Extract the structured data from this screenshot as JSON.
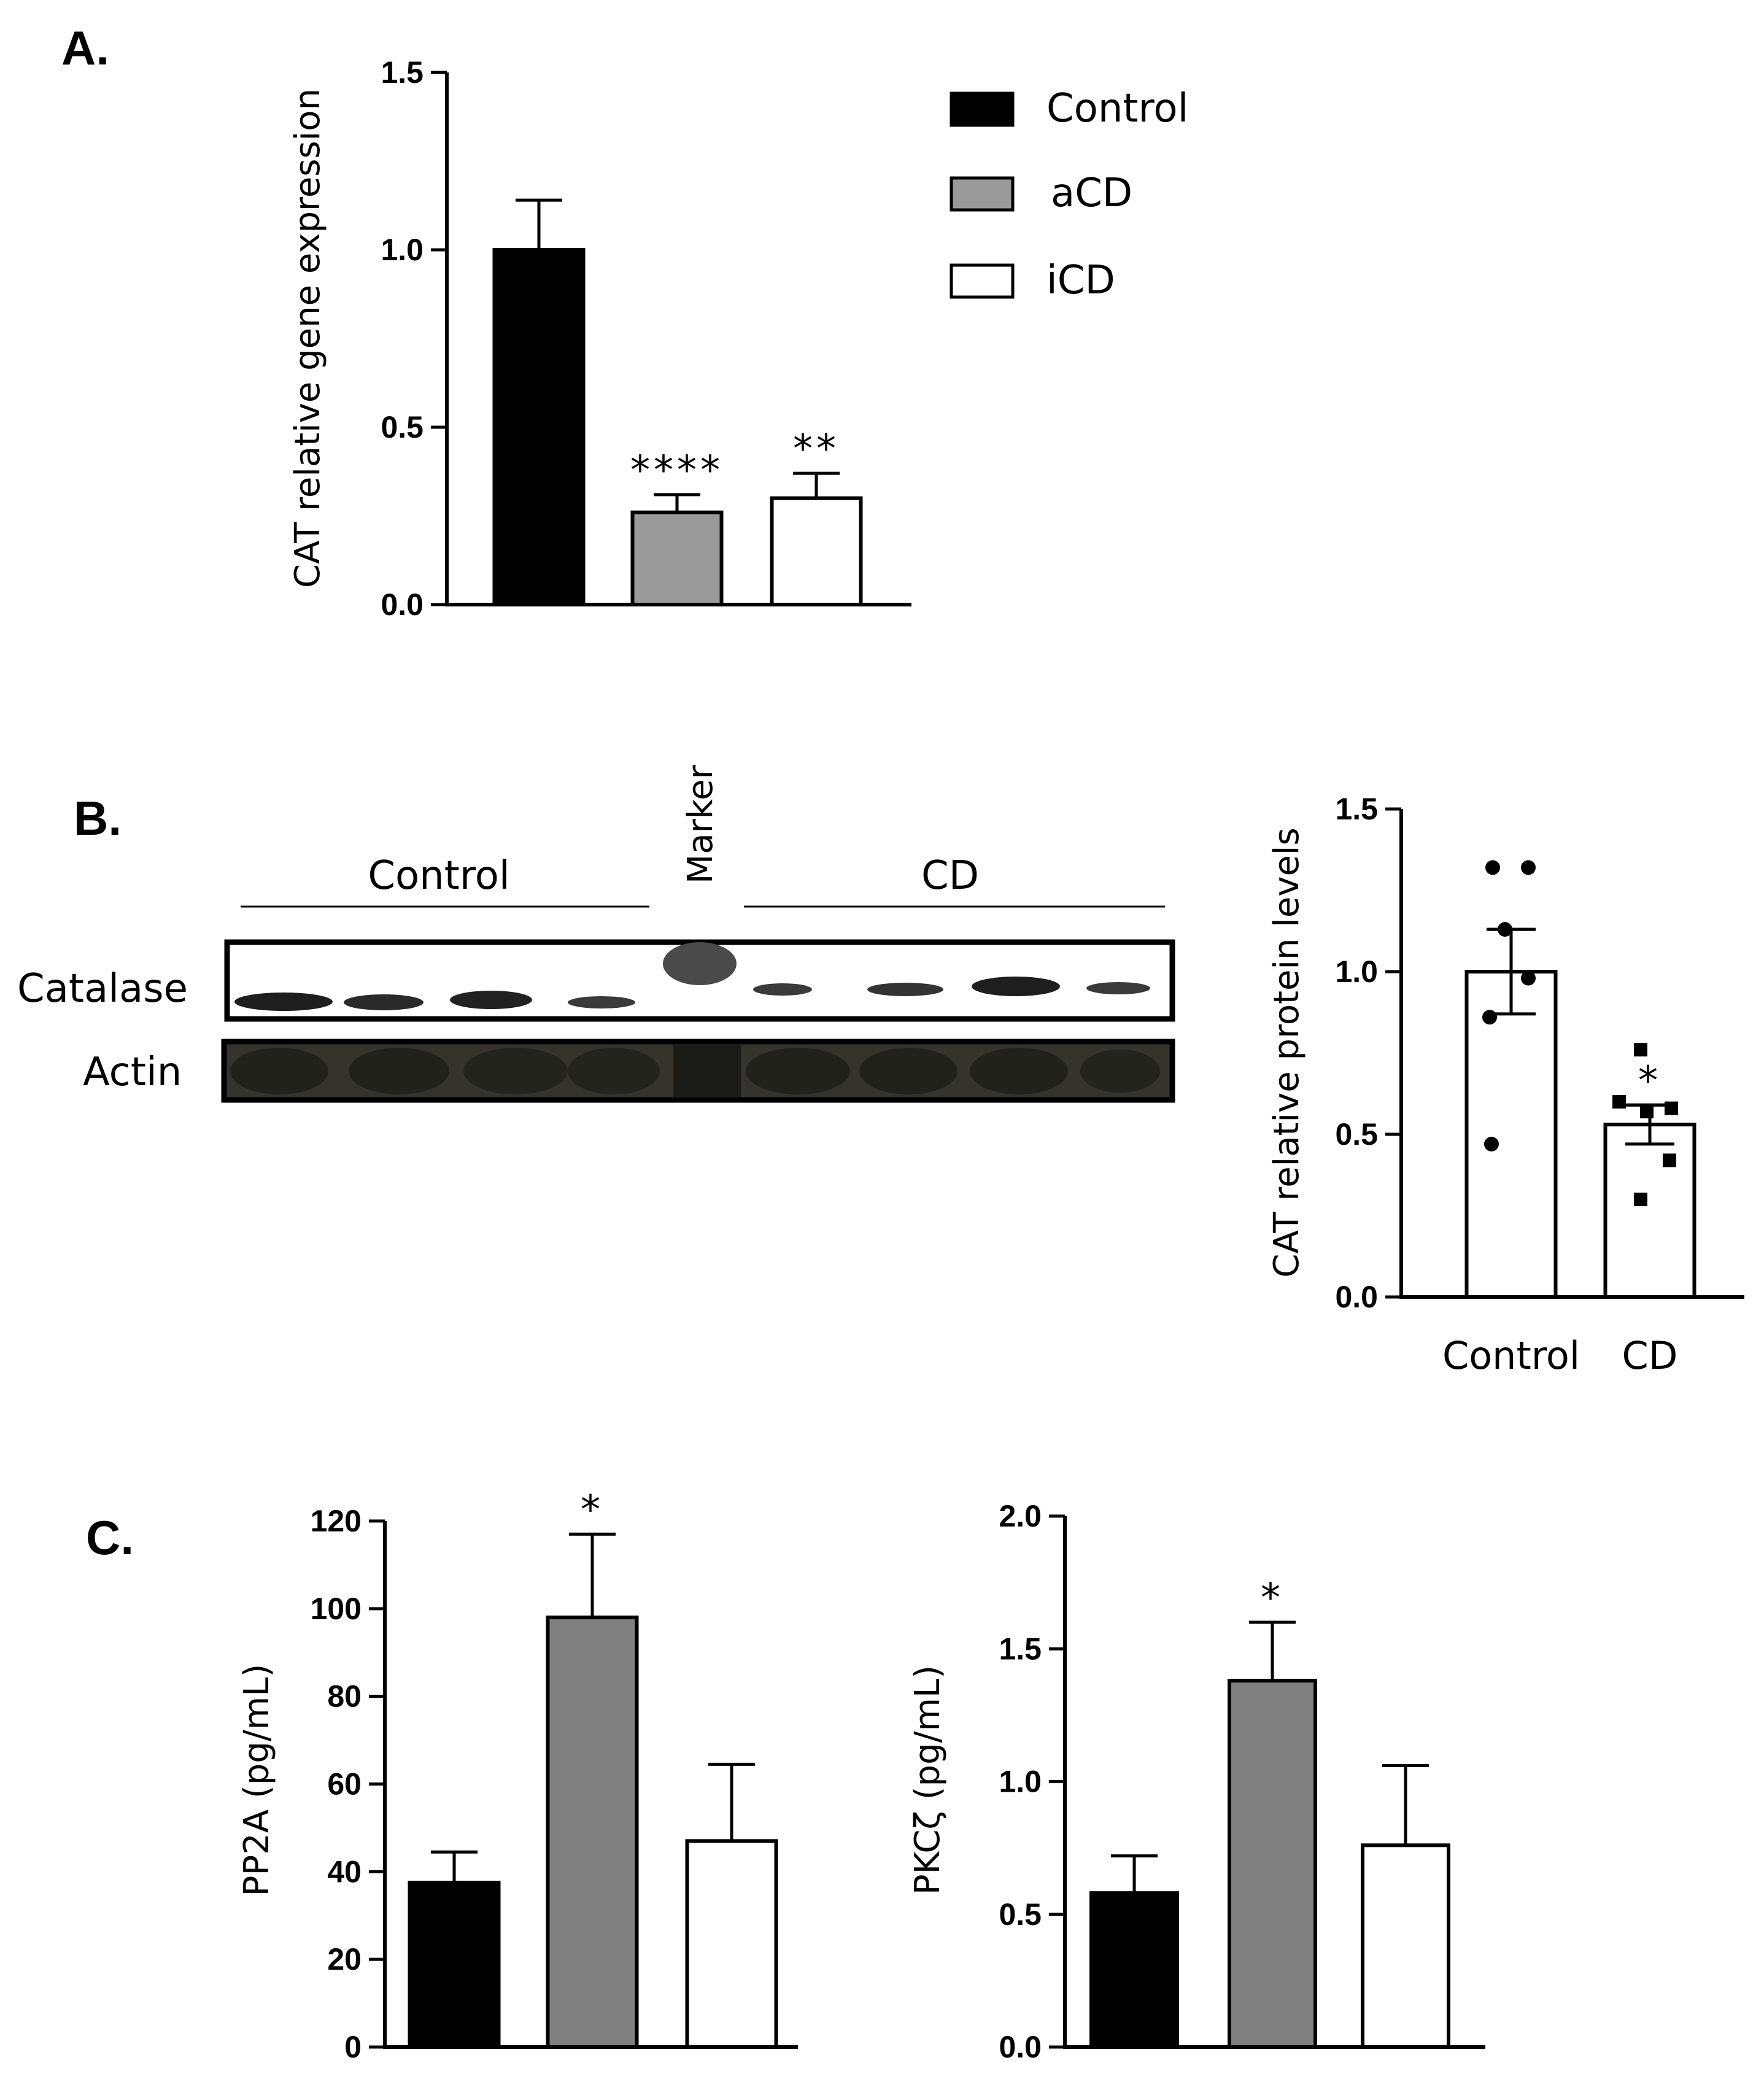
{
  "panels": {
    "a": "A.",
    "b": "B.",
    "c": "C."
  },
  "colors": {
    "control": "#000000",
    "aCD": "#9a9a9a",
    "iCD": "#ffffff",
    "c_mid": "#808080",
    "outline": "#000000"
  },
  "legend": [
    {
      "label": "Control",
      "color": "#000000"
    },
    {
      "label": "aCD",
      "color": "#9a9a9a"
    },
    {
      "label": "iCD",
      "color": "#ffffff"
    }
  ],
  "blot": {
    "control_label": "Control",
    "marker_label": "Marker",
    "cd_label": "CD",
    "row1_label": "Catalase",
    "row2_label": "Actin"
  },
  "chart_data": [
    {
      "id": "A",
      "type": "bar",
      "ylabel": "CAT relative  gene expression",
      "categories": [
        "Control",
        "aCD",
        "iCD"
      ],
      "show_category_labels": false,
      "values": [
        1.0,
        0.26,
        0.3
      ],
      "errors": [
        0.14,
        0.05,
        0.07
      ],
      "colors": [
        "#000000",
        "#9a9a9a",
        "#ffffff"
      ],
      "significance": [
        "",
        "****",
        "**"
      ],
      "ylim": [
        0,
        1.5
      ],
      "yticks": [
        0.0,
        0.5,
        1.0,
        1.5
      ],
      "ytick_labels": [
        "0.0",
        "0.5",
        "1.0",
        "1.5"
      ]
    },
    {
      "id": "B",
      "type": "bar",
      "ylabel": "CAT relative  protein levels",
      "categories": [
        "Control",
        "CD"
      ],
      "show_category_labels": true,
      "values": [
        1.0,
        0.53
      ],
      "errors": [
        0.13,
        0.06
      ],
      "colors": [
        "#ffffff",
        "#ffffff"
      ],
      "significance": [
        "",
        "*"
      ],
      "points": [
        [
          1.32,
          1.32,
          1.13,
          0.98,
          0.86,
          0.47
        ],
        [
          0.76,
          0.6,
          0.58,
          0.57,
          0.42,
          0.3
        ]
      ],
      "ylim": [
        0,
        1.5
      ],
      "yticks": [
        0.0,
        0.5,
        1.0,
        1.5
      ],
      "ytick_labels": [
        "0.0",
        "0.5",
        "1.0",
        "1.5"
      ]
    },
    {
      "id": "C1",
      "type": "bar",
      "ylabel": "PP2A (pg/mL)",
      "categories": [
        "Control",
        "aCD",
        "iCD"
      ],
      "show_category_labels": false,
      "values": [
        37.5,
        98,
        47
      ],
      "errors": [
        7,
        19,
        17.5
      ],
      "colors": [
        "#000000",
        "#808080",
        "#ffffff"
      ],
      "significance": [
        "",
        "*",
        ""
      ],
      "ylim": [
        0,
        120
      ],
      "yticks": [
        0,
        20,
        40,
        60,
        80,
        100,
        120
      ],
      "ytick_labels": [
        "0",
        "20",
        "40",
        "60",
        "80",
        "100",
        "120"
      ]
    },
    {
      "id": "C2",
      "type": "bar",
      "ylabel": "PKCζ (pg/mL)",
      "categories": [
        "Control",
        "aCD",
        "iCD"
      ],
      "show_category_labels": false,
      "values": [
        0.58,
        1.38,
        0.76
      ],
      "errors": [
        0.14,
        0.22,
        0.3
      ],
      "colors": [
        "#000000",
        "#808080",
        "#ffffff"
      ],
      "significance": [
        "",
        "*",
        ""
      ],
      "ylim": [
        0,
        2.0
      ],
      "yticks": [
        0.0,
        0.5,
        1.0,
        1.5,
        2.0
      ],
      "ytick_labels": [
        "0.0",
        "0.5",
        "1.0",
        "1.5",
        "2.0"
      ]
    }
  ]
}
